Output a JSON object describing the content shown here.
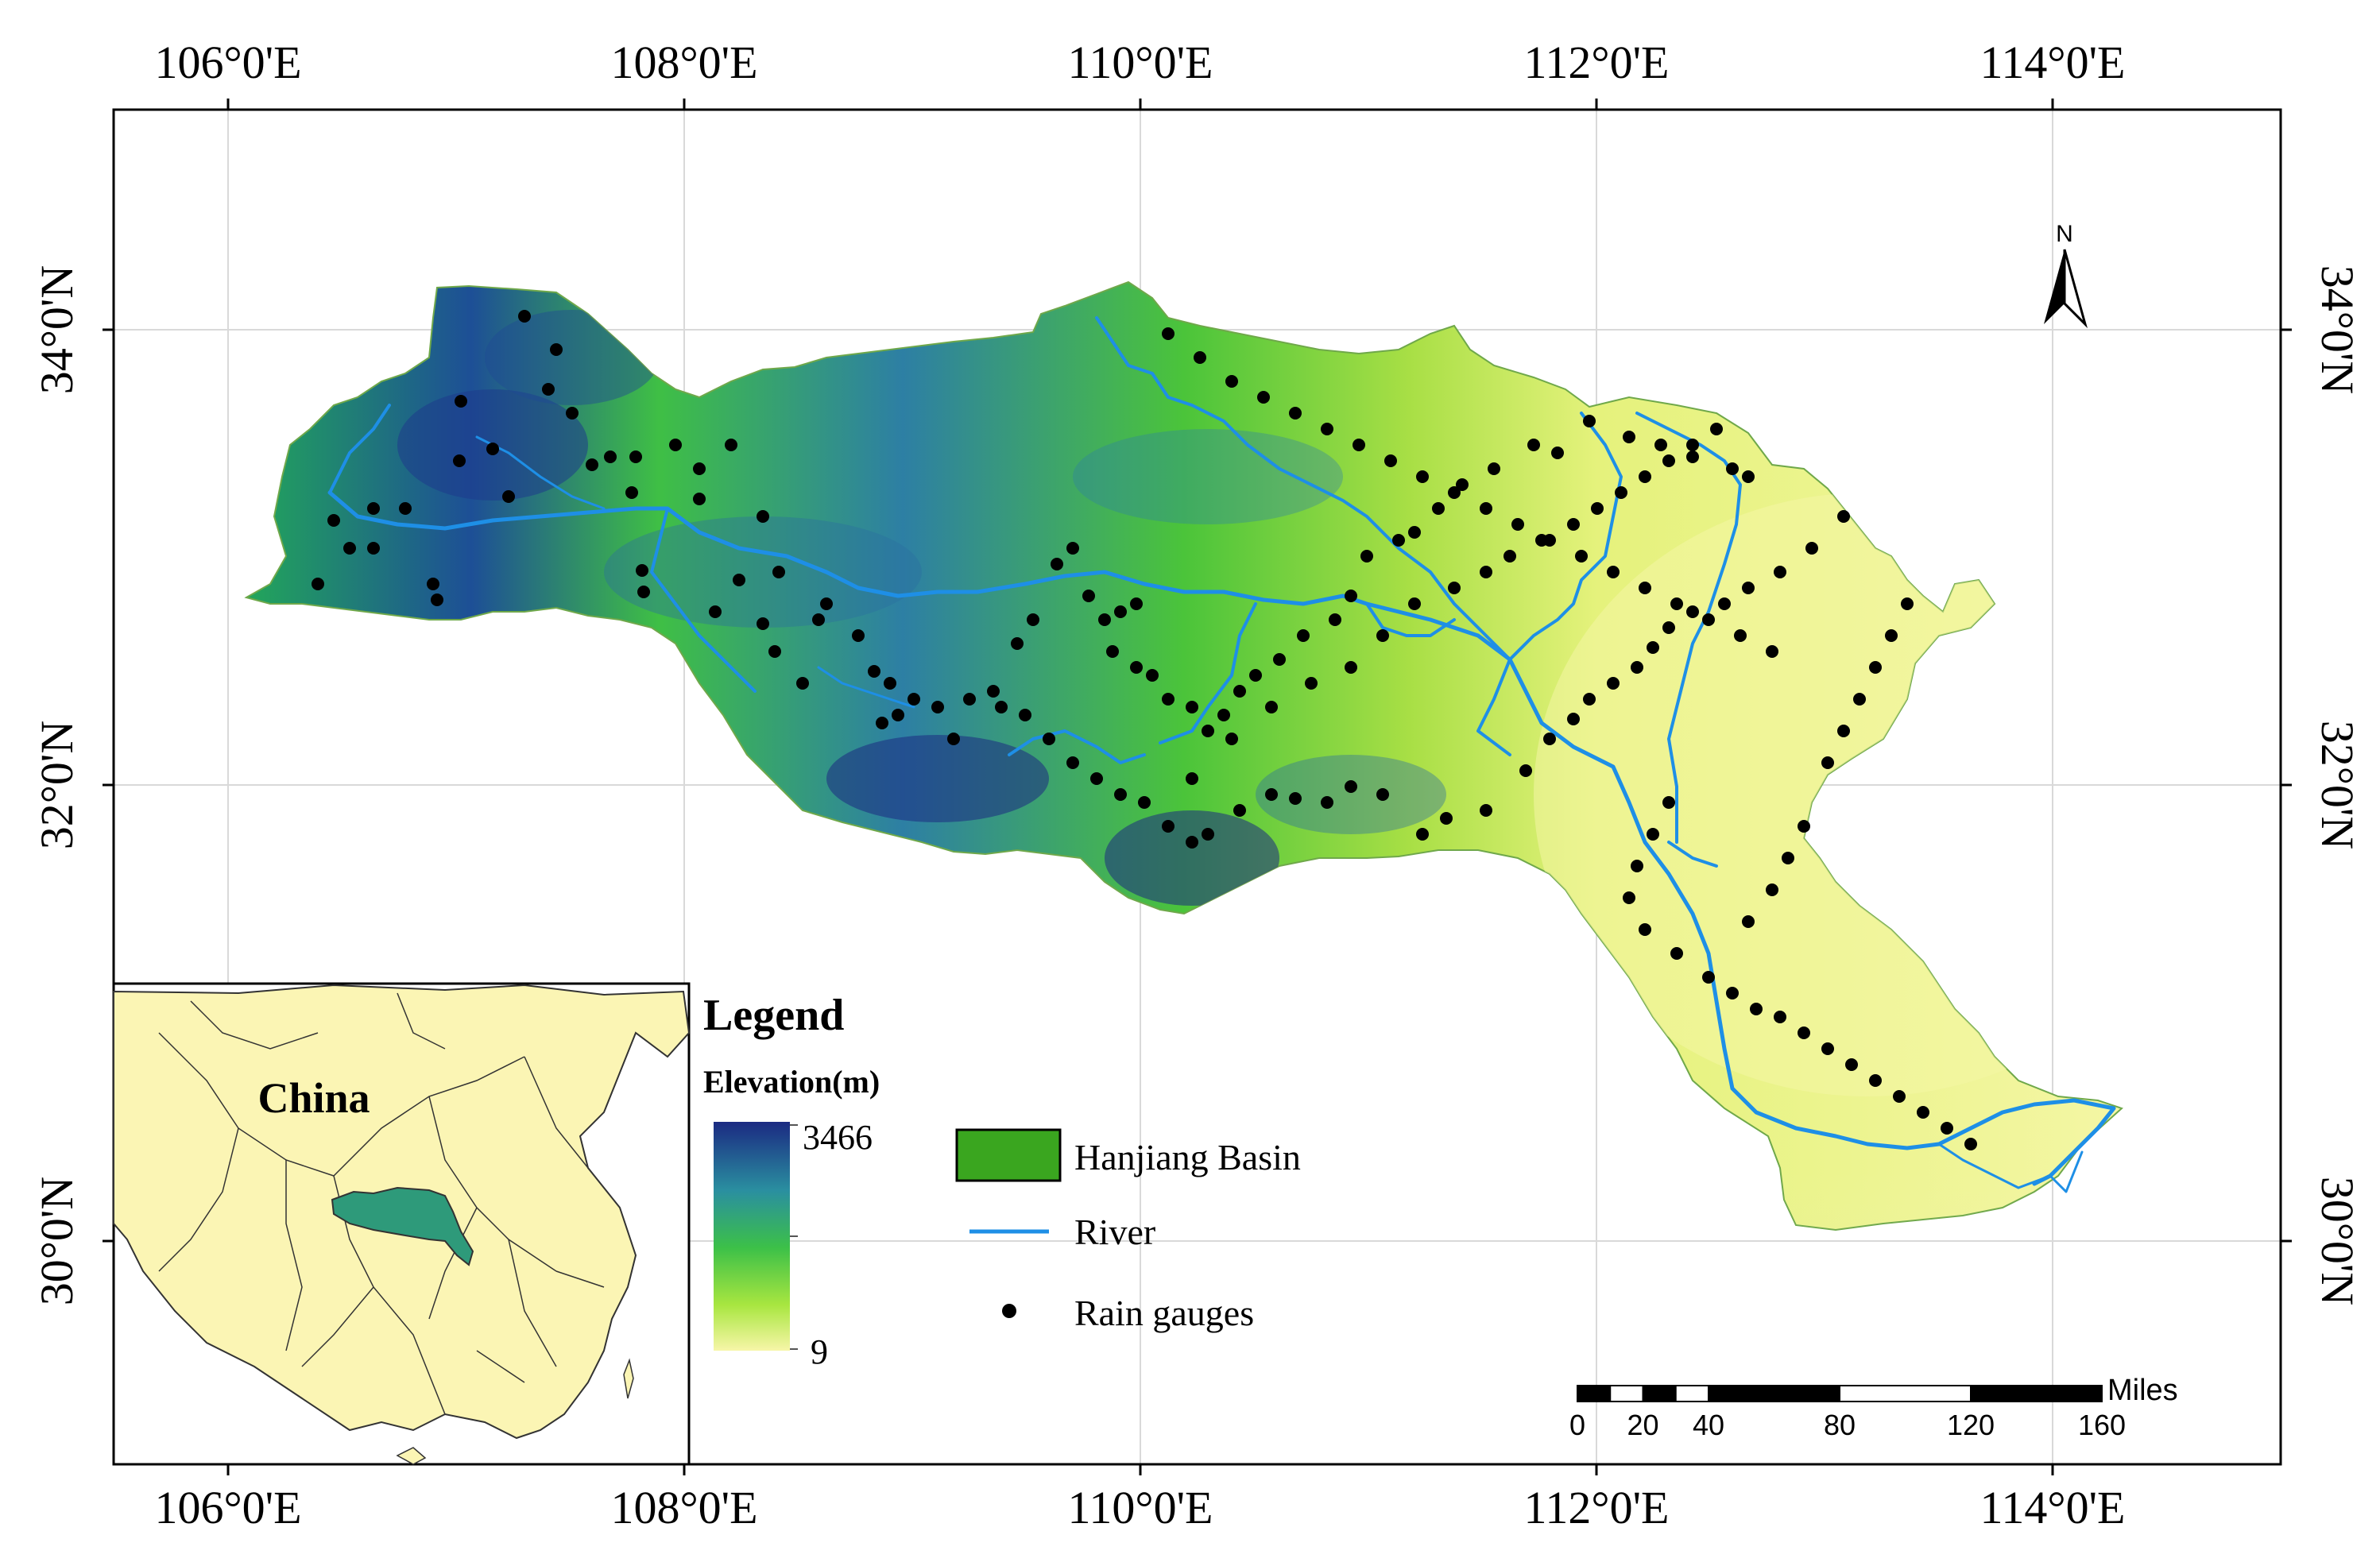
{
  "map": {
    "type": "map",
    "graticule": {
      "longitude_labels": [
        "106°0'E",
        "108°0'E",
        "110°0'E",
        "112°0'E",
        "114°0'E"
      ],
      "latitude_labels": [
        "34°0'N",
        "32°0'N",
        "30°0'N"
      ]
    },
    "north_arrow_label": "N",
    "inset": {
      "label": "China"
    },
    "legend": {
      "title": "Legend",
      "elevation_title": "Elevation(m)",
      "elevation_max": "3466",
      "elevation_min": "9",
      "items": [
        {
          "symbol": "polygon",
          "label": "Hanjiang Basin"
        },
        {
          "symbol": "line",
          "label": "River"
        },
        {
          "symbol": "point",
          "label": "Rain gauges"
        }
      ]
    },
    "scale_bar": {
      "unit": "Miles",
      "ticks": [
        "0",
        "20",
        "40",
        "80",
        "120",
        "160"
      ]
    },
    "colors": {
      "basin_fill": "#3aa61f",
      "river": "#1e8fe6",
      "gauge": "#000000",
      "inset_land": "#fbf5b4",
      "inset_basin": "#2e9a7a",
      "ramp_high": "#1b2a82",
      "ramp_mid": "#3bbf45",
      "ramp_low": "#f7f6a8"
    }
  }
}
